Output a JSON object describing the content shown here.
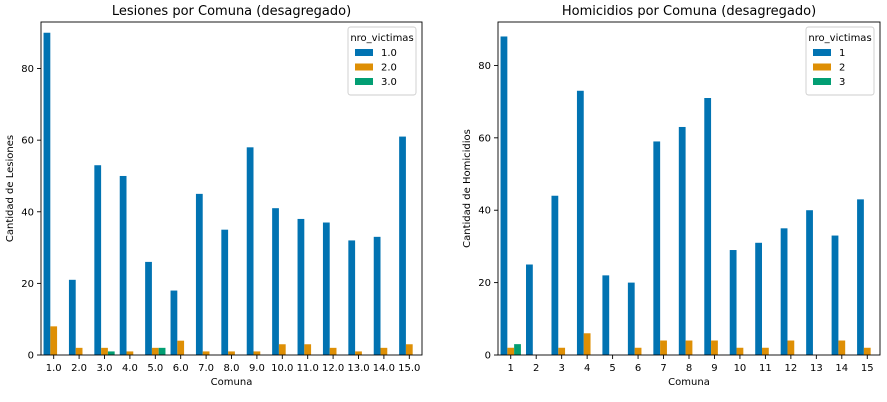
{
  "chart_data": [
    {
      "type": "bar",
      "title": "Lesiones por Comuna (desagregado)",
      "xlabel": "Comuna",
      "ylabel": "Cantidad de Lesiones",
      "ylim": [
        0,
        93
      ],
      "yticks": [
        0,
        20,
        40,
        60,
        80
      ],
      "categories": [
        "1.0",
        "2.0",
        "3.0",
        "4.0",
        "5.0",
        "6.0",
        "7.0",
        "8.0",
        "9.0",
        "10.0",
        "11.0",
        "12.0",
        "13.0",
        "14.0",
        "15.0"
      ],
      "legend": {
        "title": "nro_victimas",
        "placement": "top-right"
      },
      "series": [
        {
          "name": "1.0",
          "color": "#0173b2",
          "values": [
            90,
            21,
            53,
            50,
            26,
            18,
            45,
            35,
            58,
            41,
            38,
            37,
            32,
            33,
            61
          ]
        },
        {
          "name": "2.0",
          "color": "#de8f05",
          "values": [
            8,
            2,
            2,
            1,
            2,
            4,
            1,
            1,
            1,
            3,
            3,
            2,
            1,
            2,
            3
          ]
        },
        {
          "name": "3.0",
          "color": "#029e73",
          "values": [
            0,
            0,
            1,
            0,
            2,
            0,
            0,
            0,
            0,
            0,
            0,
            0,
            0,
            0,
            0
          ]
        }
      ],
      "grid": false
    },
    {
      "type": "bar",
      "title": "Homicidios por Comuna (desagregado)",
      "xlabel": "Comuna",
      "ylabel": "Cantidad de Homicidios",
      "ylim": [
        0,
        92
      ],
      "yticks": [
        0,
        20,
        40,
        60,
        80
      ],
      "categories": [
        "1",
        "2",
        "3",
        "4",
        "5",
        "6",
        "7",
        "8",
        "9",
        "10",
        "11",
        "12",
        "13",
        "14",
        "15"
      ],
      "legend": {
        "title": "nro_victimas",
        "placement": "top-right"
      },
      "series": [
        {
          "name": "1",
          "color": "#0173b2",
          "values": [
            88,
            25,
            44,
            73,
            22,
            20,
            59,
            63,
            71,
            29,
            31,
            35,
            40,
            33,
            43
          ]
        },
        {
          "name": "2",
          "color": "#de8f05",
          "values": [
            2,
            0,
            2,
            6,
            0,
            2,
            4,
            4,
            4,
            2,
            2,
            4,
            0,
            4,
            2
          ]
        },
        {
          "name": "3",
          "color": "#029e73",
          "values": [
            3,
            0,
            0,
            0,
            0,
            0,
            0,
            0,
            0,
            0,
            0,
            0,
            0,
            0,
            0
          ]
        }
      ],
      "grid": false
    }
  ]
}
